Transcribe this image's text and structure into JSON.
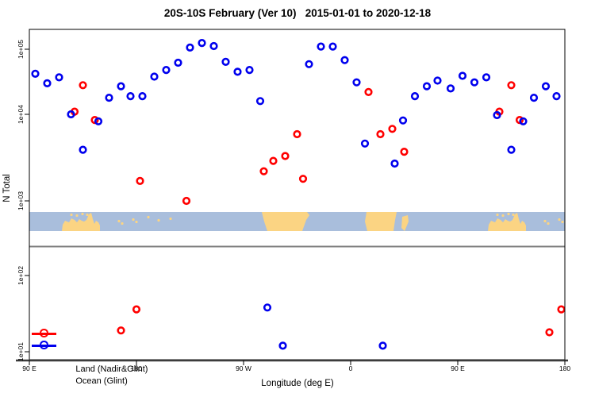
{
  "title": "20S-10S February (Ver 10)   2015-01-01 to 2020-12-18",
  "axes": {
    "x_label": "Longitude (deg E)",
    "y_label": "N Total",
    "x_ticks": [
      {
        "lon": 90,
        "label": "90 E"
      },
      {
        "lon": 180,
        "label": "180"
      },
      {
        "lon": 270,
        "label": "90 W"
      },
      {
        "lon": 360,
        "label": "0"
      },
      {
        "lon": 450,
        "label": "90 E"
      },
      {
        "lon": 540,
        "label": "180"
      }
    ],
    "y_ticks": [
      {
        "value": 100000,
        "label": "1e+05"
      },
      {
        "value": 10000,
        "label": "1e+04"
      },
      {
        "value": 1000,
        "label": "1e+03"
      },
      {
        "value": 100,
        "label": "1e+02"
      },
      {
        "value": 10,
        "label": "1e+01"
      }
    ]
  },
  "legend": {
    "items": [
      {
        "label": "Land (Nadir&Glint)",
        "color": "#ff0000"
      },
      {
        "label": "Ocean (Glint)",
        "color": "#0000ee"
      }
    ]
  },
  "colors": {
    "land_series": "#ff0000",
    "ocean_series": "#0000ee",
    "map_ocean": "#a9bedc",
    "map_land": "#fbd483",
    "separator": "#7f7f7f",
    "axis": "#000000",
    "bottom_axis": "#3c3c3c"
  },
  "chart_data": {
    "type": "scatter",
    "title": "20S-10S February (Ver 10)   2015-01-01 to 2020-12-18",
    "xlabel": "Longitude (deg E)",
    "ylabel": "N Total",
    "x_axis": {
      "range_deg_e": [
        90,
        540
      ],
      "tick_interval_deg": 90,
      "wraps_globe": true
    },
    "y_axis": {
      "scale": "log10",
      "range": [
        10,
        200000
      ]
    },
    "grid": false,
    "legend_position": "bottom-left",
    "series": [
      {
        "name": "Land (Nadir&Glint)",
        "color": "#ff0000",
        "marker": "open-circle",
        "points": [
          [
            128,
            11000
          ],
          [
            135,
            28000
          ],
          [
            145,
            8600
          ],
          [
            167,
            19
          ],
          [
            180,
            36
          ],
          [
            183,
            1700
          ],
          [
            222,
            1000
          ],
          [
            287,
            2200
          ],
          [
            295,
            2900
          ],
          [
            305,
            3300
          ],
          [
            315,
            5900
          ],
          [
            320,
            1800
          ],
          [
            375,
            22000
          ],
          [
            385,
            5900
          ],
          [
            395,
            6800
          ],
          [
            405,
            3700
          ],
          [
            485,
            11000
          ],
          [
            495,
            28000
          ],
          [
            502,
            8600
          ],
          [
            527,
            18
          ],
          [
            537,
            36
          ]
        ]
      },
      {
        "name": "Ocean (Glint)",
        "color": "#0000ee",
        "marker": "open-circle",
        "points": [
          [
            95,
            42000
          ],
          [
            105,
            30000
          ],
          [
            115,
            37000
          ],
          [
            125,
            10000
          ],
          [
            135,
            3900
          ],
          [
            148,
            8300
          ],
          [
            157,
            18000
          ],
          [
            167,
            27000
          ],
          [
            175,
            19000
          ],
          [
            185,
            19000
          ],
          [
            195,
            38000
          ],
          [
            205,
            48000
          ],
          [
            215,
            62000
          ],
          [
            225,
            106000
          ],
          [
            235,
            125000
          ],
          [
            245,
            112000
          ],
          [
            255,
            64000
          ],
          [
            265,
            45000
          ],
          [
            275,
            48000
          ],
          [
            284,
            16000
          ],
          [
            290,
            38
          ],
          [
            303,
            12
          ],
          [
            325,
            59000
          ],
          [
            335,
            110000
          ],
          [
            345,
            110000
          ],
          [
            355,
            68000
          ],
          [
            365,
            31000
          ],
          [
            372,
            4600
          ],
          [
            387,
            12
          ],
          [
            397,
            2700
          ],
          [
            404,
            8500
          ],
          [
            414,
            19000
          ],
          [
            424,
            27000
          ],
          [
            433,
            33000
          ],
          [
            444,
            25000
          ],
          [
            454,
            39000
          ],
          [
            464,
            31000
          ],
          [
            474,
            37000
          ],
          [
            483,
            9800
          ],
          [
            495,
            3900
          ],
          [
            505,
            8300
          ],
          [
            514,
            18000
          ],
          [
            524,
            27000
          ],
          [
            533,
            19000
          ]
        ]
      }
    ],
    "map_strip": {
      "description": "World coastline band for latitudes 20S-10S drawn across the plot",
      "ocean_color": "#a9bedc",
      "land_color": "#fbd483",
      "regions": [
        {
          "name": "australia",
          "offsets": [
            0,
            537
          ],
          "points": [
            [
              41,
              24
            ],
            [
              42,
              16
            ],
            [
              45,
              11
            ],
            [
              50,
              13
            ],
            [
              53,
              8
            ],
            [
              57,
              10
            ],
            [
              60,
              13
            ],
            [
              63,
              9
            ],
            [
              66,
              11
            ],
            [
              69,
              12
            ],
            [
              72,
              10
            ],
            [
              75,
              3
            ],
            [
              78,
              1
            ],
            [
              80,
              9
            ],
            [
              82,
              15
            ],
            [
              84,
              11
            ],
            [
              87,
              13
            ],
            [
              89,
              17
            ],
            [
              89,
              24
            ]
          ]
        },
        {
          "name": "south-america",
          "offsets": [
            0
          ],
          "points": [
            [
              293,
              0
            ],
            [
              350,
              0
            ],
            [
              353,
              4
            ],
            [
              349,
              10
            ],
            [
              344,
              24
            ],
            [
              300,
              24
            ],
            [
              296,
              12
            ]
          ]
        },
        {
          "name": "africa",
          "offsets": [
            0
          ],
          "points": [
            [
              425,
              0
            ],
            [
              463,
              0
            ],
            [
              461,
              10
            ],
            [
              459,
              24
            ],
            [
              426,
              24
            ],
            [
              423,
              12
            ]
          ]
        },
        {
          "name": "madagascar",
          "offsets": [
            0
          ],
          "points": [
            [
              470,
              6
            ],
            [
              477,
              4
            ],
            [
              478,
              12
            ],
            [
              473,
              24
            ],
            [
              469,
              20
            ]
          ]
        }
      ],
      "island_dots": {
        "offsets": [
          0,
          537
        ],
        "points": [
          [
            53,
            2
          ],
          [
            60,
            3
          ],
          [
            67,
            1
          ],
          [
            73,
            2
          ],
          [
            113,
            10
          ],
          [
            117,
            13
          ],
          [
            131,
            8
          ],
          [
            135,
            11
          ],
          [
            150,
            5
          ],
          [
            163,
            9
          ],
          [
            178,
            7
          ]
        ]
      }
    }
  }
}
